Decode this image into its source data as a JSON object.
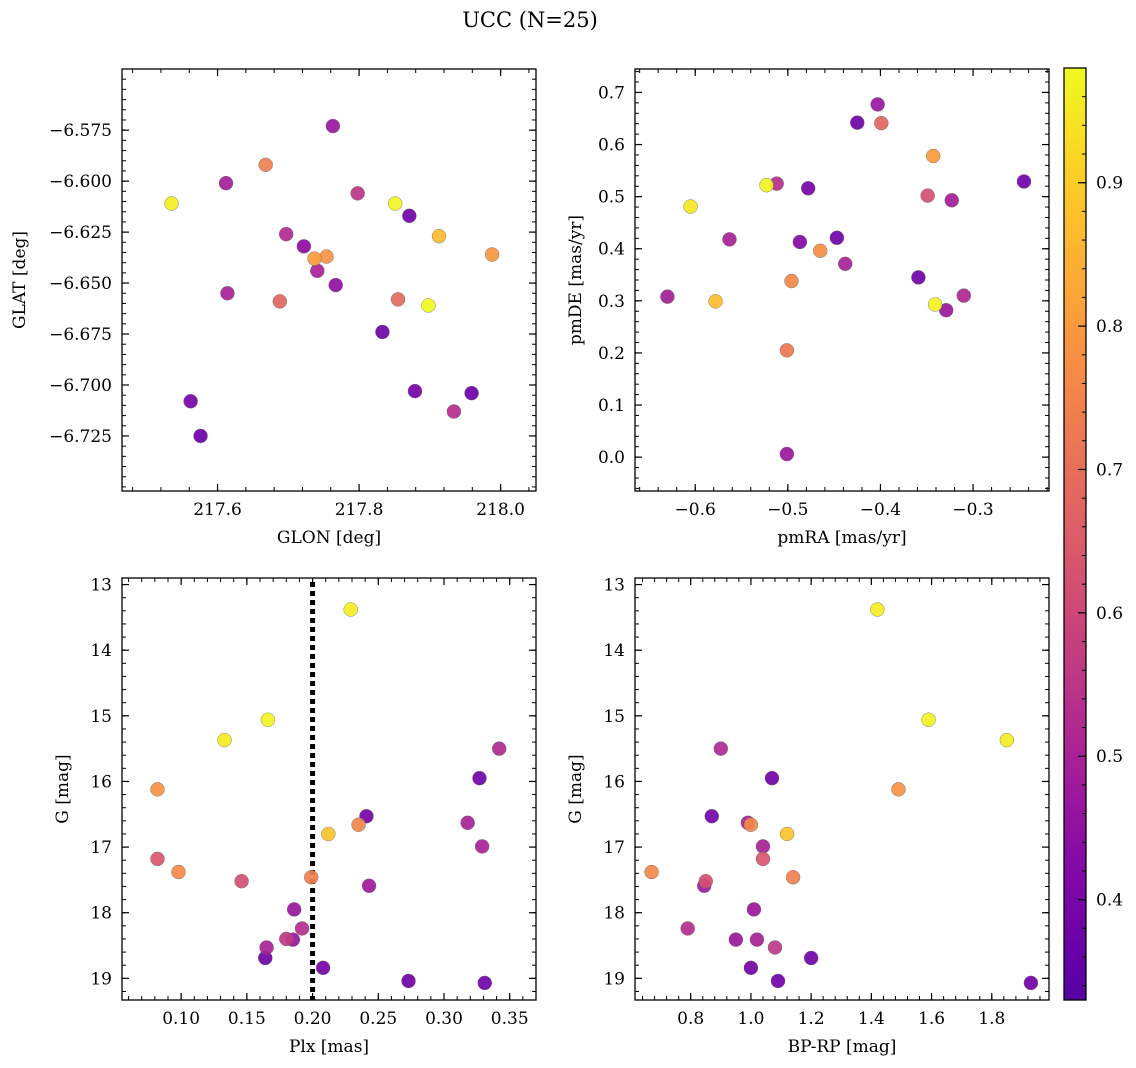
{
  "title": "UCC (N=25)",
  "colormap": {
    "name": "plasma",
    "range": [
      0.33,
      0.98
    ],
    "ticks": [
      0.4,
      0.5,
      0.6,
      0.7,
      0.8,
      0.9
    ],
    "tick_labels": [
      "0.4",
      "0.5",
      "0.6",
      "0.7",
      "0.8",
      "0.9"
    ]
  },
  "chart_data": [
    {
      "type": "scatter",
      "name": "position",
      "xlabel": "GLON [deg]",
      "ylabel": "GLAT [deg]",
      "xlim": [
        217.465,
        218.05
      ],
      "ylim": [
        -6.752,
        -6.545
      ],
      "xticks": [
        217.6,
        217.8,
        218.0
      ],
      "xtick_labels": [
        "217.6",
        "217.8",
        "218.0"
      ],
      "yticks": [
        -6.575,
        -6.6,
        -6.625,
        -6.65,
        -6.675,
        -6.7,
        -6.725
      ],
      "ytick_labels": [
        "−6.575",
        "−6.600",
        "−6.625",
        "−6.650",
        "−6.675",
        "−6.700",
        "−6.725"
      ],
      "x_minor_step": 0.04,
      "y_minor_step": 0.005,
      "points": [
        {
          "x": 217.535,
          "y": -6.611,
          "c": 0.96
        },
        {
          "x": 217.612,
          "y": -6.601,
          "c": 0.49
        },
        {
          "x": 217.668,
          "y": -6.592,
          "c": 0.74
        },
        {
          "x": 217.763,
          "y": -6.573,
          "c": 0.47
        },
        {
          "x": 217.798,
          "y": -6.606,
          "c": 0.55
        },
        {
          "x": 217.851,
          "y": -6.611,
          "c": 0.97
        },
        {
          "x": 217.871,
          "y": -6.617,
          "c": 0.38
        },
        {
          "x": 217.913,
          "y": -6.627,
          "c": 0.87
        },
        {
          "x": 217.988,
          "y": -6.636,
          "c": 0.79
        },
        {
          "x": 217.697,
          "y": -6.626,
          "c": 0.52
        },
        {
          "x": 217.722,
          "y": -6.632,
          "c": 0.44
        },
        {
          "x": 217.737,
          "y": -6.638,
          "c": 0.8
        },
        {
          "x": 217.754,
          "y": -6.637,
          "c": 0.78
        },
        {
          "x": 217.741,
          "y": -6.644,
          "c": 0.5
        },
        {
          "x": 217.767,
          "y": -6.651,
          "c": 0.45
        },
        {
          "x": 217.614,
          "y": -6.655,
          "c": 0.5
        },
        {
          "x": 217.688,
          "y": -6.659,
          "c": 0.68
        },
        {
          "x": 217.855,
          "y": -6.658,
          "c": 0.69
        },
        {
          "x": 217.898,
          "y": -6.661,
          "c": 0.98
        },
        {
          "x": 217.833,
          "y": -6.674,
          "c": 0.38
        },
        {
          "x": 217.879,
          "y": -6.703,
          "c": 0.39
        },
        {
          "x": 217.959,
          "y": -6.704,
          "c": 0.37
        },
        {
          "x": 217.562,
          "y": -6.708,
          "c": 0.39
        },
        {
          "x": 217.934,
          "y": -6.713,
          "c": 0.53
        },
        {
          "x": 217.576,
          "y": -6.725,
          "c": 0.37
        }
      ]
    },
    {
      "type": "scatter",
      "name": "proper-motion",
      "xlabel": "pmRA [mas/yr]",
      "ylabel": "pmDE [mas/yr]",
      "xlim": [
        -0.665,
        -0.218
      ],
      "ylim": [
        -0.065,
        0.745
      ],
      "xticks": [
        -0.6,
        -0.5,
        -0.4,
        -0.3
      ],
      "xtick_labels": [
        "−0.6",
        "−0.5",
        "−0.4",
        "−0.3"
      ],
      "yticks": [
        0.0,
        0.1,
        0.2,
        0.3,
        0.4,
        0.5,
        0.6,
        0.7
      ],
      "ytick_labels": [
        "0.0",
        "0.1",
        "0.2",
        "0.3",
        "0.4",
        "0.5",
        "0.6",
        "0.7"
      ],
      "x_minor_step": 0.02,
      "y_minor_step": 0.02,
      "points": [
        {
          "x": -0.403,
          "y": 0.677,
          "c": 0.47
        },
        {
          "x": -0.425,
          "y": 0.642,
          "c": 0.38
        },
        {
          "x": -0.399,
          "y": 0.641,
          "c": 0.68
        },
        {
          "x": -0.343,
          "y": 0.578,
          "c": 0.8
        },
        {
          "x": -0.245,
          "y": 0.529,
          "c": 0.38
        },
        {
          "x": -0.512,
          "y": 0.525,
          "c": 0.53
        },
        {
          "x": -0.523,
          "y": 0.522,
          "c": 0.97
        },
        {
          "x": -0.478,
          "y": 0.516,
          "c": 0.39
        },
        {
          "x": -0.349,
          "y": 0.502,
          "c": 0.62
        },
        {
          "x": -0.323,
          "y": 0.493,
          "c": 0.49
        },
        {
          "x": -0.605,
          "y": 0.481,
          "c": 0.95
        },
        {
          "x": -0.447,
          "y": 0.421,
          "c": 0.38
        },
        {
          "x": -0.563,
          "y": 0.418,
          "c": 0.5
        },
        {
          "x": -0.487,
          "y": 0.413,
          "c": 0.42
        },
        {
          "x": -0.465,
          "y": 0.396,
          "c": 0.77
        },
        {
          "x": -0.438,
          "y": 0.371,
          "c": 0.5
        },
        {
          "x": -0.359,
          "y": 0.345,
          "c": 0.38
        },
        {
          "x": -0.496,
          "y": 0.338,
          "c": 0.76
        },
        {
          "x": -0.31,
          "y": 0.31,
          "c": 0.51
        },
        {
          "x": -0.63,
          "y": 0.308,
          "c": 0.49
        },
        {
          "x": -0.578,
          "y": 0.299,
          "c": 0.87
        },
        {
          "x": -0.341,
          "y": 0.293,
          "c": 0.97
        },
        {
          "x": -0.329,
          "y": 0.282,
          "c": 0.47
        },
        {
          "x": -0.501,
          "y": 0.205,
          "c": 0.72
        },
        {
          "x": -0.501,
          "y": 0.006,
          "c": 0.47
        }
      ]
    },
    {
      "type": "scatter",
      "name": "parallax-magnitude",
      "xlabel": "Plx [mas]",
      "ylabel": "G [mag]",
      "xlim": [
        0.055,
        0.37
      ],
      "ylim": [
        19.33,
        12.9
      ],
      "y_inverted": true,
      "xticks": [
        0.1,
        0.15,
        0.2,
        0.25,
        0.3,
        0.35
      ],
      "xtick_labels": [
        "0.10",
        "0.15",
        "0.20",
        "0.25",
        "0.30",
        "0.35"
      ],
      "yticks": [
        13,
        14,
        15,
        16,
        17,
        18,
        19
      ],
      "ytick_labels": [
        "13",
        "14",
        "15",
        "16",
        "17",
        "18",
        "19"
      ],
      "x_minor_step": 0.01,
      "y_minor_step": 0.2,
      "vline": {
        "x": 0.2,
        "style": "dotted",
        "color": "#000000"
      },
      "points": [
        {
          "x": 0.229,
          "y": 13.38,
          "c": 0.96
        },
        {
          "x": 0.166,
          "y": 15.06,
          "c": 0.97
        },
        {
          "x": 0.133,
          "y": 15.37,
          "c": 0.96
        },
        {
          "x": 0.342,
          "y": 15.5,
          "c": 0.52
        },
        {
          "x": 0.327,
          "y": 15.95,
          "c": 0.38
        },
        {
          "x": 0.082,
          "y": 16.12,
          "c": 0.78
        },
        {
          "x": 0.241,
          "y": 16.53,
          "c": 0.39
        },
        {
          "x": 0.318,
          "y": 16.63,
          "c": 0.5
        },
        {
          "x": 0.235,
          "y": 16.66,
          "c": 0.76
        },
        {
          "x": 0.212,
          "y": 16.8,
          "c": 0.88
        },
        {
          "x": 0.329,
          "y": 16.99,
          "c": 0.5
        },
        {
          "x": 0.082,
          "y": 17.18,
          "c": 0.64
        },
        {
          "x": 0.098,
          "y": 17.38,
          "c": 0.76
        },
        {
          "x": 0.199,
          "y": 17.46,
          "c": 0.74
        },
        {
          "x": 0.146,
          "y": 17.52,
          "c": 0.62
        },
        {
          "x": 0.243,
          "y": 17.59,
          "c": 0.48
        },
        {
          "x": 0.186,
          "y": 17.95,
          "c": 0.47
        },
        {
          "x": 0.192,
          "y": 18.24,
          "c": 0.53
        },
        {
          "x": 0.18,
          "y": 18.4,
          "c": 0.56
        },
        {
          "x": 0.185,
          "y": 18.41,
          "c": 0.47
        },
        {
          "x": 0.165,
          "y": 18.53,
          "c": 0.5
        },
        {
          "x": 0.164,
          "y": 18.69,
          "c": 0.38
        },
        {
          "x": 0.208,
          "y": 18.84,
          "c": 0.39
        },
        {
          "x": 0.273,
          "y": 19.04,
          "c": 0.38
        },
        {
          "x": 0.331,
          "y": 19.07,
          "c": 0.38
        }
      ]
    },
    {
      "type": "scatter",
      "name": "color-magnitude",
      "xlabel": "BP-RP [mag]",
      "ylabel": "G [mag]",
      "xlim": [
        0.615,
        1.99
      ],
      "ylim": [
        19.33,
        12.9
      ],
      "y_inverted": true,
      "xticks": [
        0.8,
        1.0,
        1.2,
        1.4,
        1.6,
        1.8
      ],
      "xtick_labels": [
        "0.8",
        "1.0",
        "1.2",
        "1.4",
        "1.6",
        "1.8"
      ],
      "yticks": [
        13,
        14,
        15,
        16,
        17,
        18,
        19
      ],
      "ytick_labels": [
        "13",
        "14",
        "15",
        "16",
        "17",
        "18",
        "19"
      ],
      "x_minor_step": 0.04,
      "y_minor_step": 0.2,
      "points": [
        {
          "x": 1.42,
          "y": 13.38,
          "c": 0.96
        },
        {
          "x": 1.59,
          "y": 15.06,
          "c": 0.97
        },
        {
          "x": 1.85,
          "y": 15.37,
          "c": 0.96
        },
        {
          "x": 0.9,
          "y": 15.5,
          "c": 0.52
        },
        {
          "x": 1.07,
          "y": 15.95,
          "c": 0.38
        },
        {
          "x": 1.49,
          "y": 16.12,
          "c": 0.78
        },
        {
          "x": 0.87,
          "y": 16.53,
          "c": 0.39
        },
        {
          "x": 0.99,
          "y": 16.63,
          "c": 0.5
        },
        {
          "x": 1.0,
          "y": 16.66,
          "c": 0.76
        },
        {
          "x": 1.12,
          "y": 16.8,
          "c": 0.88
        },
        {
          "x": 1.04,
          "y": 16.99,
          "c": 0.5
        },
        {
          "x": 1.04,
          "y": 17.18,
          "c": 0.64
        },
        {
          "x": 0.67,
          "y": 17.38,
          "c": 0.76
        },
        {
          "x": 1.14,
          "y": 17.46,
          "c": 0.74
        },
        {
          "x": 0.85,
          "y": 17.52,
          "c": 0.62
        },
        {
          "x": 0.845,
          "y": 17.59,
          "c": 0.48
        },
        {
          "x": 1.01,
          "y": 17.95,
          "c": 0.47
        },
        {
          "x": 0.79,
          "y": 18.24,
          "c": 0.53
        },
        {
          "x": 0.95,
          "y": 18.41,
          "c": 0.47
        },
        {
          "x": 1.02,
          "y": 18.41,
          "c": 0.5
        },
        {
          "x": 1.08,
          "y": 18.53,
          "c": 0.56
        },
        {
          "x": 1.2,
          "y": 18.69,
          "c": 0.38
        },
        {
          "x": 1.0,
          "y": 18.84,
          "c": 0.39
        },
        {
          "x": 1.09,
          "y": 19.04,
          "c": 0.38
        },
        {
          "x": 1.93,
          "y": 19.07,
          "c": 0.38
        }
      ]
    }
  ]
}
